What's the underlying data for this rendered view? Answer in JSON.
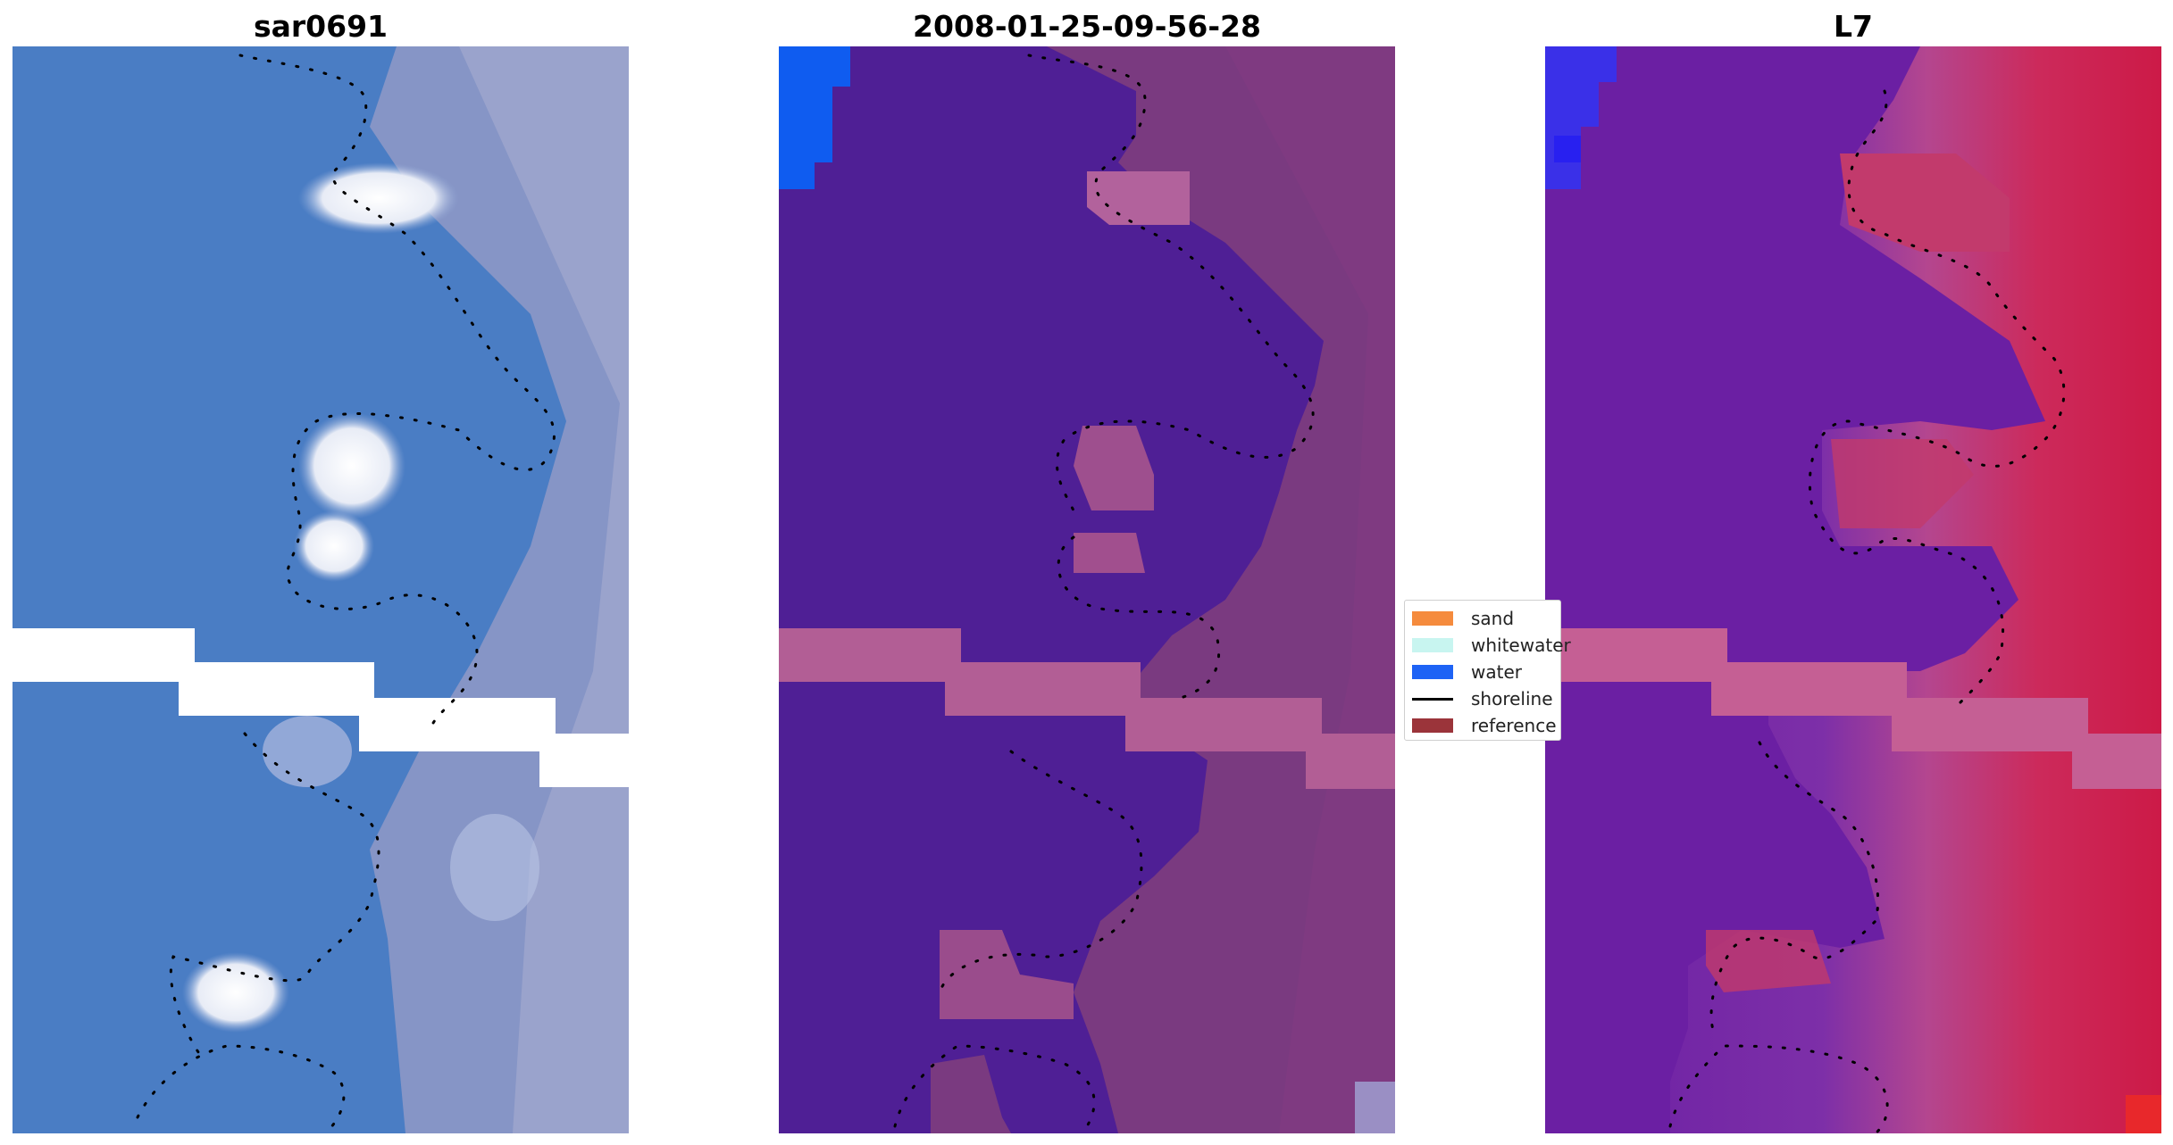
{
  "panels": [
    {
      "title": "sar0691"
    },
    {
      "title": "2008-01-25-09-56-28"
    },
    {
      "title": "L7"
    }
  ],
  "legend": {
    "items": [
      {
        "label": "sand",
        "color": "#f58b3d",
        "kind": "patch"
      },
      {
        "label": "whitewater",
        "color": "#c8f5f0",
        "kind": "patch"
      },
      {
        "label": "water",
        "color": "#1e63f5",
        "kind": "patch"
      },
      {
        "label": "shoreline",
        "color": "#000000",
        "kind": "line"
      },
      {
        "label": "reference",
        "color": "#9b343a",
        "kind": "patch"
      }
    ]
  },
  "colors": {
    "rgb_water": "#4a7fc4",
    "rgb_sand": "#8d9ac8",
    "rgb_whitewater": "#f4f6fb",
    "class_water": "#4f1f95",
    "class_sand": "#7a3a80",
    "class_pink": "#b25e95",
    "class_blue": "#0f5cf0",
    "index_purple": "#6a1fa3",
    "index_red": "#cc1a47",
    "index_pink": "#c55f94",
    "nodata": "#ffffff"
  }
}
